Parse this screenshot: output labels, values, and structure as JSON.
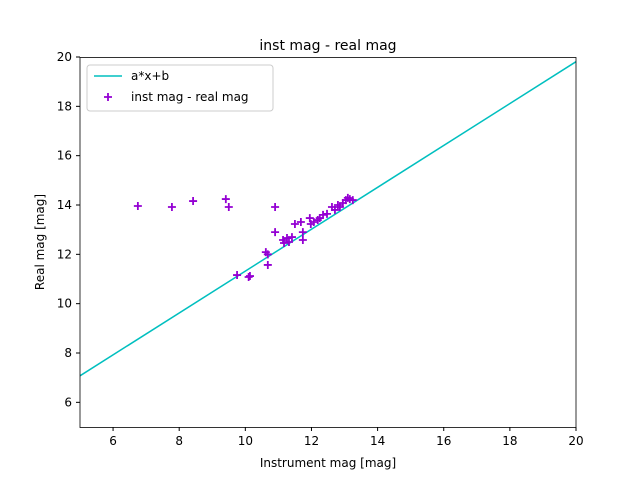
{
  "chart_data": {
    "type": "scatter",
    "title": "inst mag - real mag",
    "xlabel": "Instrument mag [mag]",
    "ylabel": "Real mag [mag]",
    "xlim": [
      5,
      20
    ],
    "ylim": [
      5,
      20
    ],
    "xticks": [
      6,
      8,
      10,
      12,
      14,
      16,
      18,
      20
    ],
    "yticks": [
      6,
      8,
      10,
      12,
      14,
      16,
      18,
      20
    ],
    "grid": false,
    "legend_position": "top-left",
    "line": {
      "name": "a*x+b",
      "a": 0.849,
      "b": 2.83,
      "color": "#00bfbf"
    },
    "scatter": {
      "name": "inst mag - real mag",
      "color": "#9400d3",
      "x": [
        6.75,
        7.78,
        8.42,
        9.41,
        9.5,
        9.75,
        10.14,
        10.1,
        10.62,
        10.68,
        10.68,
        10.9,
        10.9,
        11.14,
        11.17,
        11.26,
        11.32,
        11.41,
        11.5,
        11.68,
        11.74,
        11.74,
        11.95,
        11.98,
        12.07,
        12.19,
        12.25,
        12.35,
        12.47,
        12.62,
        12.71,
        12.8,
        12.86,
        12.95,
        13.04,
        13.1,
        13.16,
        13.25
      ],
      "y": [
        13.96,
        13.92,
        14.16,
        14.24,
        13.92,
        11.16,
        11.12,
        11.08,
        12.09,
        12.0,
        11.57,
        13.92,
        12.9,
        12.58,
        12.46,
        12.66,
        12.5,
        12.7,
        13.23,
        13.31,
        12.9,
        12.58,
        13.47,
        13.23,
        13.31,
        13.39,
        13.47,
        13.6,
        13.64,
        13.92,
        13.8,
        14.0,
        13.92,
        14.08,
        14.2,
        14.29,
        14.24,
        14.2
      ]
    }
  }
}
